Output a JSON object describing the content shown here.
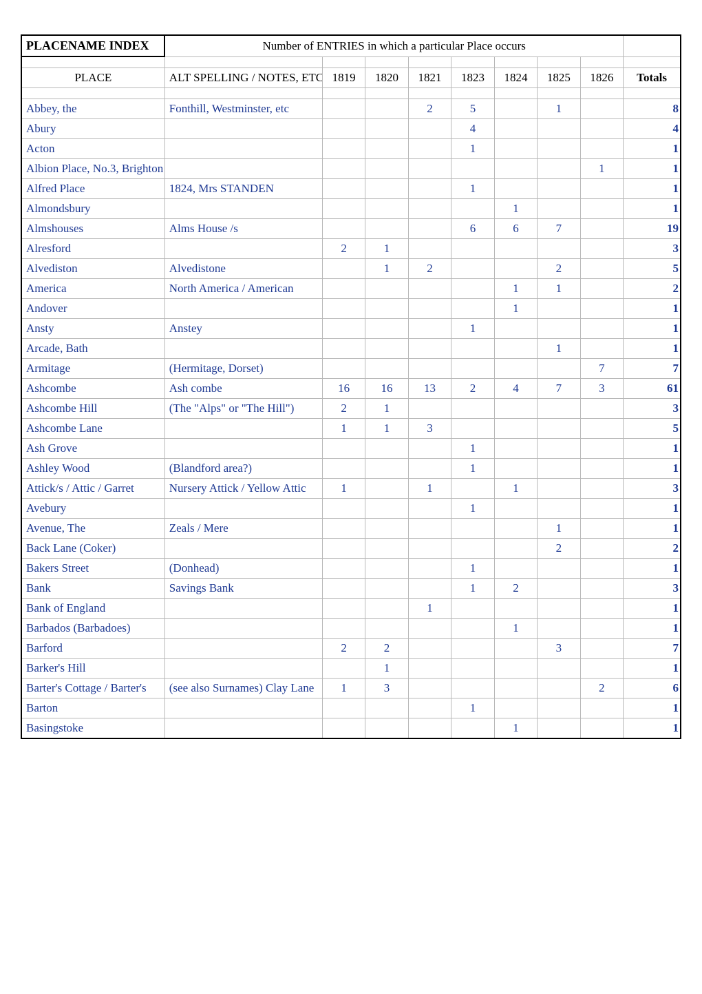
{
  "header": {
    "title": "PLACENAME INDEX",
    "subtitle": "Number of ENTRIES in which a particular Place occurs",
    "place_label": "PLACE",
    "alt_label": "ALT SPELLING / NOTES, ETC",
    "years": [
      "1819",
      "1820",
      "1821",
      "1823",
      "1824",
      "1825",
      "1826"
    ],
    "totals_label": "Totals"
  },
  "rows": [
    {
      "place": "Abbey, the",
      "alt": "Fonthill, Westminster, etc",
      "y": [
        "",
        "",
        "2",
        "5",
        "",
        "1",
        ""
      ],
      "t": "8"
    },
    {
      "place": "Abury",
      "alt": "",
      "y": [
        "",
        "",
        "",
        "4",
        "",
        "",
        ""
      ],
      "t": "4"
    },
    {
      "place": "Acton",
      "alt": "",
      "y": [
        "",
        "",
        "",
        "1",
        "",
        "",
        ""
      ],
      "t": "1"
    },
    {
      "place": "Albion Place, No.3, Brighton",
      "alt": "",
      "y": [
        "",
        "",
        "",
        "",
        "",
        "",
        "1"
      ],
      "t": "1"
    },
    {
      "place": "Alfred Place",
      "alt": "1824, Mrs STANDEN",
      "y": [
        "",
        "",
        "",
        "1",
        "",
        "",
        ""
      ],
      "t": "1"
    },
    {
      "place": "Almondsbury",
      "alt": "",
      "y": [
        "",
        "",
        "",
        "",
        "1",
        "",
        ""
      ],
      "t": "1"
    },
    {
      "place": "Almshouses",
      "alt": "Alms House /s",
      "y": [
        "",
        "",
        "",
        "6",
        "6",
        "7",
        ""
      ],
      "t": "19"
    },
    {
      "place": "Alresford",
      "alt": "",
      "y": [
        "2",
        "1",
        "",
        "",
        "",
        "",
        ""
      ],
      "t": "3"
    },
    {
      "place": "Alvediston",
      "alt": "Alvedistone",
      "y": [
        "",
        "1",
        "2",
        "",
        "",
        "2",
        ""
      ],
      "t": "5"
    },
    {
      "place": "America",
      "alt": "North America / American",
      "y": [
        "",
        "",
        "",
        "",
        "1",
        "1",
        ""
      ],
      "t": "2"
    },
    {
      "place": "Andover",
      "alt": "",
      "y": [
        "",
        "",
        "",
        "",
        "1",
        "",
        ""
      ],
      "t": "1"
    },
    {
      "place": "Ansty",
      "alt": "Anstey",
      "y": [
        "",
        "",
        "",
        "1",
        "",
        "",
        ""
      ],
      "t": "1"
    },
    {
      "place": "Arcade, Bath",
      "alt": "",
      "y": [
        "",
        "",
        "",
        "",
        "",
        "1",
        ""
      ],
      "t": "1"
    },
    {
      "place": "Armitage",
      "alt": "(Hermitage, Dorset)",
      "y": [
        "",
        "",
        "",
        "",
        "",
        "",
        "7"
      ],
      "t": "7"
    },
    {
      "place": "Ashcombe",
      "alt": "Ash combe",
      "y": [
        "16",
        "16",
        "13",
        "2",
        "4",
        "7",
        "3"
      ],
      "t": "61"
    },
    {
      "place": "Ashcombe Hill",
      "alt": "(The \"Alps\" or \"The Hill\")",
      "y": [
        "2",
        "1",
        "",
        "",
        "",
        "",
        ""
      ],
      "t": "3"
    },
    {
      "place": "Ashcombe Lane",
      "alt": "",
      "y": [
        "1",
        "1",
        "3",
        "",
        "",
        "",
        ""
      ],
      "t": "5"
    },
    {
      "place": "Ash Grove",
      "alt": "",
      "y": [
        "",
        "",
        "",
        "1",
        "",
        "",
        ""
      ],
      "t": "1"
    },
    {
      "place": "Ashley Wood",
      "alt": "(Blandford area?)",
      "y": [
        "",
        "",
        "",
        "1",
        "",
        "",
        ""
      ],
      "t": "1"
    },
    {
      "place": "Attick/s / Attic / Garret",
      "alt": "Nursery Attick / Yellow Attic",
      "y": [
        "1",
        "",
        "1",
        "",
        "1",
        "",
        ""
      ],
      "t": "3"
    },
    {
      "place": "Avebury",
      "alt": "",
      "y": [
        "",
        "",
        "",
        "1",
        "",
        "",
        ""
      ],
      "t": "1"
    },
    {
      "place": "Avenue, The",
      "alt": "Zeals / Mere",
      "y": [
        "",
        "",
        "",
        "",
        "",
        "1",
        ""
      ],
      "t": "1"
    },
    {
      "place": "Back Lane (Coker)",
      "alt": "",
      "y": [
        "",
        "",
        "",
        "",
        "",
        "2",
        ""
      ],
      "t": "2"
    },
    {
      "place": "Bakers Street",
      "alt": "(Donhead)",
      "y": [
        "",
        "",
        "",
        "1",
        "",
        "",
        ""
      ],
      "t": "1"
    },
    {
      "place": "Bank",
      "alt": "Savings Bank",
      "y": [
        "",
        "",
        "",
        "1",
        "2",
        "",
        ""
      ],
      "t": "3"
    },
    {
      "place": "Bank of England",
      "alt": "",
      "y": [
        "",
        "",
        "1",
        "",
        "",
        "",
        ""
      ],
      "t": "1"
    },
    {
      "place": "Barbados (Barbadoes)",
      "alt": "",
      "y": [
        "",
        "",
        "",
        "",
        "1",
        "",
        ""
      ],
      "t": "1"
    },
    {
      "place": "Barford",
      "alt": "",
      "y": [
        "2",
        "2",
        "",
        "",
        "",
        "3",
        ""
      ],
      "t": "7"
    },
    {
      "place": "Barker's Hill",
      "alt": "",
      "y": [
        "",
        "1",
        "",
        "",
        "",
        "",
        ""
      ],
      "t": "1"
    },
    {
      "place": "Barter's Cottage / Barter's",
      "alt": "(see also Surnames) Clay Lane",
      "y": [
        "1",
        "3",
        "",
        "",
        "",
        "",
        "2"
      ],
      "t": "6"
    },
    {
      "place": "Barton",
      "alt": "",
      "y": [
        "",
        "",
        "",
        "1",
        "",
        "",
        ""
      ],
      "t": "1"
    },
    {
      "place": "Basingstoke",
      "alt": "",
      "y": [
        "",
        "",
        "",
        "",
        "1",
        "",
        ""
      ],
      "t": "1"
    }
  ]
}
